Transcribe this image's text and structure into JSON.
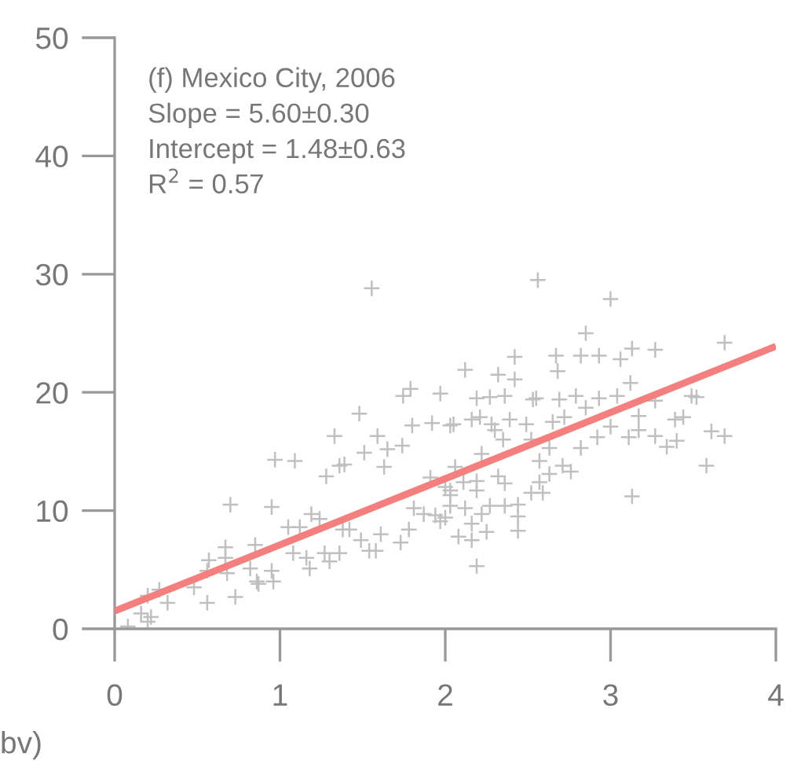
{
  "chart_data": {
    "type": "scatter",
    "xlabel": "bv)",
    "annotations": [
      "(f) Mexico City, 2006",
      "Slope = 5.60±0.30",
      "Intercept = 1.48±0.63",
      "R$^{2}$ = 0.57"
    ],
    "xlim": [
      0,
      4
    ],
    "ylim": [
      0,
      50
    ],
    "xticks": [
      0,
      1,
      2,
      3,
      4
    ],
    "yticks": [
      0,
      10,
      20,
      30,
      40,
      50
    ],
    "grid": false,
    "series": [
      {
        "color": "#c0c0c0",
        "marker": "cross",
        "x": [
          1.555,
          1.745,
          1.79,
          1.97,
          1.48,
          1.33,
          1.59,
          1.8,
          1.92,
          2.03,
          0.97,
          1.09,
          1.51,
          1.65,
          1.74,
          1.36,
          1.39,
          1.28,
          1.63,
          1.91,
          0.7,
          0.95,
          1.05,
          1.12,
          1.19,
          1.24,
          1.08,
          1.16,
          1.18,
          1.27,
          1.3,
          1.36,
          1.38,
          1.42,
          1.49,
          1.54,
          1.58,
          1.61,
          0.95,
          0.96,
          0.86,
          0.87,
          0.82,
          0.85,
          0.67,
          0.67,
          0.68,
          0.57,
          0.56,
          0.48,
          0.56,
          0.73,
          0.32,
          0.27,
          0.2,
          0.16,
          0.22,
          0.2,
          0.08,
          1.73,
          1.78,
          1.81,
          1.87,
          1.94,
          2.0,
          2.0,
          2.03,
          2.56,
          3.0,
          2.85,
          2.12,
          2.42,
          2.67,
          2.82,
          2.93,
          3.06,
          3.13,
          3.27,
          3.69,
          2.32,
          2.68,
          2.42,
          3.12,
          2.19,
          2.27,
          2.36,
          2.55,
          2.69,
          2.79,
          2.93,
          2.53,
          3.04,
          3.49,
          3.52,
          2.85,
          3.27,
          2.05,
          2.16,
          2.21,
          2.28,
          2.39,
          2.49,
          2.65,
          2.72,
          3.0,
          3.17,
          3.39,
          3.44,
          3.17,
          3.11,
          3.27,
          3.34,
          3.4,
          3.61,
          3.69,
          3.58,
          3.13,
          2.3,
          2.35,
          2.52,
          2.63,
          2.82,
          2.92,
          2.22,
          2.06,
          2.57,
          2.71,
          2.76,
          2.63,
          2.19,
          2.32,
          2.36,
          2.19,
          2.57,
          2.52,
          2.59,
          2.03,
          2.11,
          2.03,
          2.12,
          2.22,
          2.27,
          2.36,
          2.44,
          1.97,
          2.16,
          2.44,
          2.25,
          2.44,
          2.08,
          2.16,
          2.19
        ],
        "values": [
          28.8,
          19.7,
          20.3,
          19.9,
          18.2,
          16.3,
          16.3,
          17.2,
          17.4,
          17.2,
          14.3,
          14.2,
          14.9,
          15.2,
          15.5,
          13.8,
          13.9,
          12.9,
          13.7,
          12.8,
          10.5,
          10.3,
          8.6,
          8.6,
          9.7,
          9.3,
          6.4,
          6.0,
          5.1,
          6.4,
          5.7,
          6.4,
          8.4,
          8.4,
          7.5,
          6.6,
          6.6,
          8.0,
          4.9,
          4.0,
          4.0,
          3.8,
          5.1,
          7.1,
          6.9,
          6.0,
          4.7,
          5.8,
          4.9,
          3.5,
          2.2,
          2.7,
          2.2,
          3.3,
          2.8,
          1.3,
          1.0,
          0.6,
          0.2,
          7.3,
          8.4,
          10.2,
          9.7,
          9.6,
          9.4,
          12.0,
          11.3,
          29.5,
          27.9,
          25.0,
          21.9,
          23.0,
          23.1,
          23.1,
          23.1,
          22.8,
          23.7,
          23.6,
          24.2,
          21.5,
          21.8,
          21.1,
          20.8,
          19.5,
          19.6,
          19.7,
          19.5,
          19.4,
          19.7,
          19.5,
          19.4,
          19.7,
          19.7,
          19.6,
          18.7,
          19.3,
          17.3,
          17.7,
          17.9,
          17.3,
          17.7,
          17.3,
          17.5,
          17.9,
          17.1,
          18.0,
          17.7,
          17.9,
          16.8,
          16.2,
          16.3,
          15.4,
          15.9,
          16.7,
          16.3,
          13.8,
          11.2,
          16.8,
          16.0,
          16.0,
          15.3,
          15.3,
          16.2,
          14.8,
          13.7,
          14.2,
          13.8,
          13.3,
          13.1,
          12.5,
          12.9,
          12.3,
          11.7,
          12.4,
          11.5,
          11.5,
          11.7,
          12.4,
          10.4,
          10.2,
          9.7,
          10.4,
          10.4,
          10.5,
          9.1,
          8.9,
          9.5,
          8.2,
          8.3,
          7.8,
          7.5,
          5.3
        ]
      },
      {
        "type": "line",
        "color": "#f47f7f",
        "marker": "none",
        "line_style": "solid",
        "x": [
          0,
          4
        ],
        "values": [
          1.5,
          23.9
        ]
      }
    ]
  }
}
